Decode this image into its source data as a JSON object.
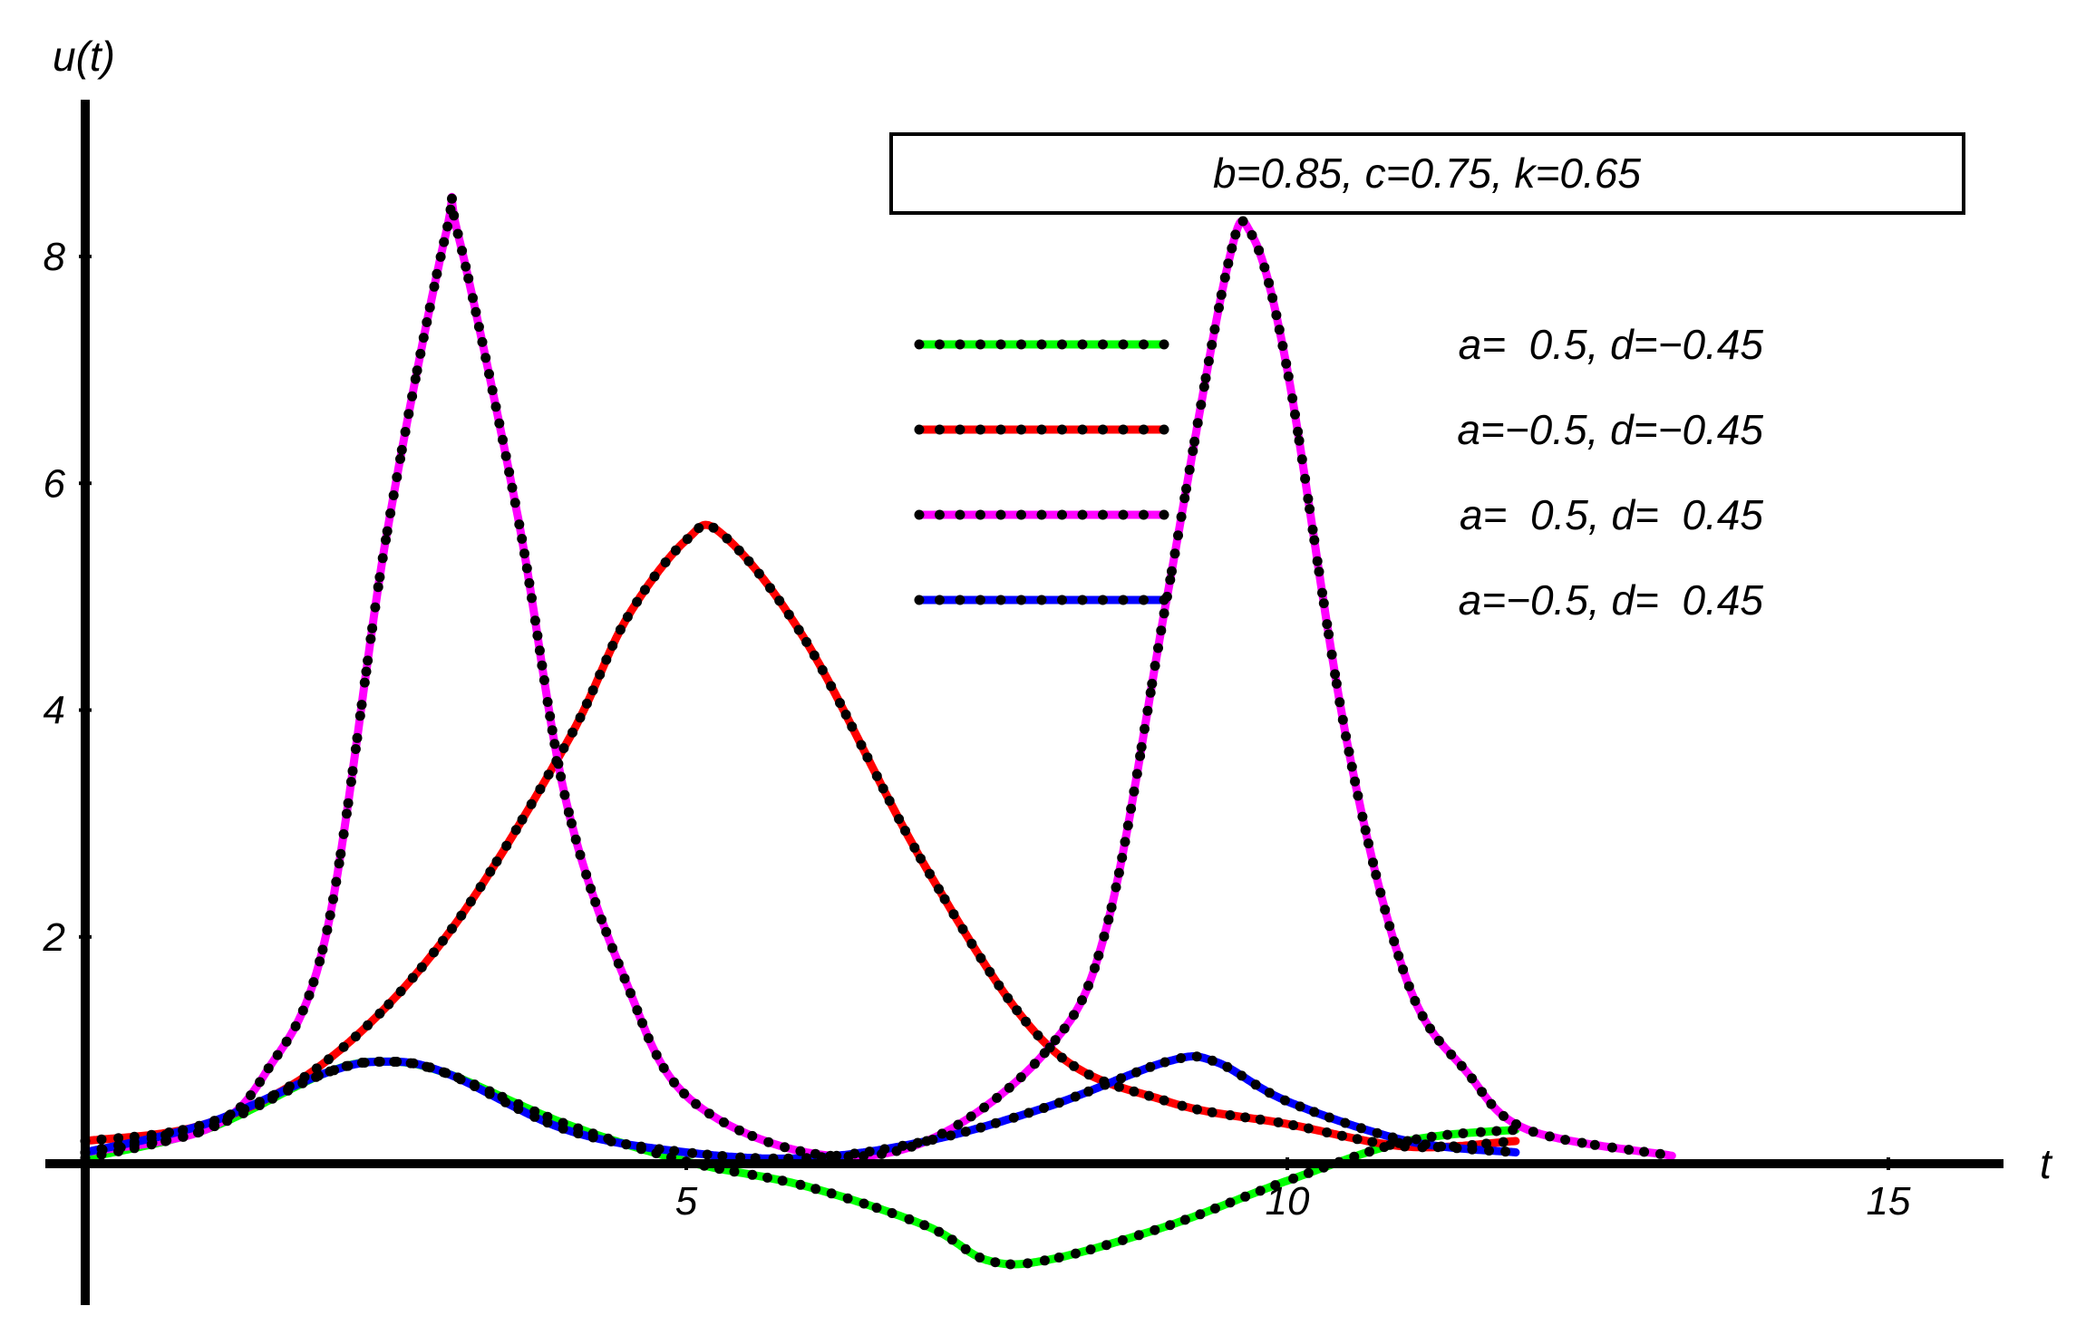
{
  "chart_data": {
    "type": "line",
    "title": "",
    "xlabel": "t",
    "ylabel": "u(t)",
    "xlim": [
      -0.1,
      16.1
    ],
    "ylim": [
      -1.3,
      9.5
    ],
    "x_ticks": [
      5,
      10,
      15
    ],
    "x_tick_labels": [
      "5",
      "10",
      "15"
    ],
    "y_ticks": [
      2,
      4,
      6,
      8
    ],
    "y_tick_labels": [
      "2",
      "4",
      "6",
      "8"
    ],
    "grid": false,
    "legend_position": "top-right",
    "parameter_box": "b=0.85, c=0.75, k=0.65",
    "marker_color": "#000000",
    "series": [
      {
        "name": "a=  0.5, d=−0.45",
        "color": "#00ff00",
        "x": [
          0,
          1,
          2,
          2.5,
          3,
          4,
          5,
          6,
          7,
          7.5,
          8,
          9,
          10,
          11,
          11.9
        ],
        "y": [
          0.05,
          0.3,
          0.8,
          0.9,
          0.8,
          0.35,
          0.02,
          -0.2,
          -0.55,
          -0.85,
          -0.85,
          -0.55,
          -0.15,
          0.2,
          0.3
        ]
      },
      {
        "name": "a=−0.5, d=−0.45",
        "color": "#ff0000",
        "x": [
          0,
          1,
          2,
          3,
          4,
          4.5,
          5,
          5.3,
          6,
          7,
          8,
          9,
          10,
          11,
          11.9
        ],
        "y": [
          0.2,
          0.35,
          0.9,
          2.0,
          3.7,
          4.8,
          5.5,
          5.55,
          4.6,
          2.6,
          1.05,
          0.55,
          0.35,
          0.15,
          0.2
        ]
      },
      {
        "name": "a=  0.5, d=  0.45",
        "color": "#ff00ff",
        "x": [
          0,
          1,
          1.5,
          2,
          2.5,
          3,
          3.1,
          3.6,
          4,
          4.5,
          5,
          6,
          7,
          8,
          8.5,
          9,
          9.5,
          9.7,
          10,
          10.5,
          11,
          11.5,
          12,
          13.2
        ],
        "y": [
          0.1,
          0.3,
          0.8,
          2.0,
          5.5,
          8.2,
          8.2,
          5.7,
          3.2,
          1.6,
          0.6,
          0.1,
          0.2,
          1.0,
          2.1,
          5.0,
          7.9,
          8.2,
          7.0,
          3.7,
          1.6,
          0.8,
          0.3,
          0.07
        ]
      },
      {
        "name": "a=−0.5, d=  0.45",
        "color": "#0000ff",
        "x": [
          0,
          1,
          2,
          2.5,
          3,
          4,
          5,
          6,
          7,
          8,
          9,
          9.4,
          10,
          11,
          11.9
        ],
        "y": [
          0.1,
          0.35,
          0.8,
          0.9,
          0.8,
          0.3,
          0.1,
          0.05,
          0.2,
          0.5,
          0.9,
          0.9,
          0.55,
          0.2,
          0.1
        ]
      }
    ]
  }
}
